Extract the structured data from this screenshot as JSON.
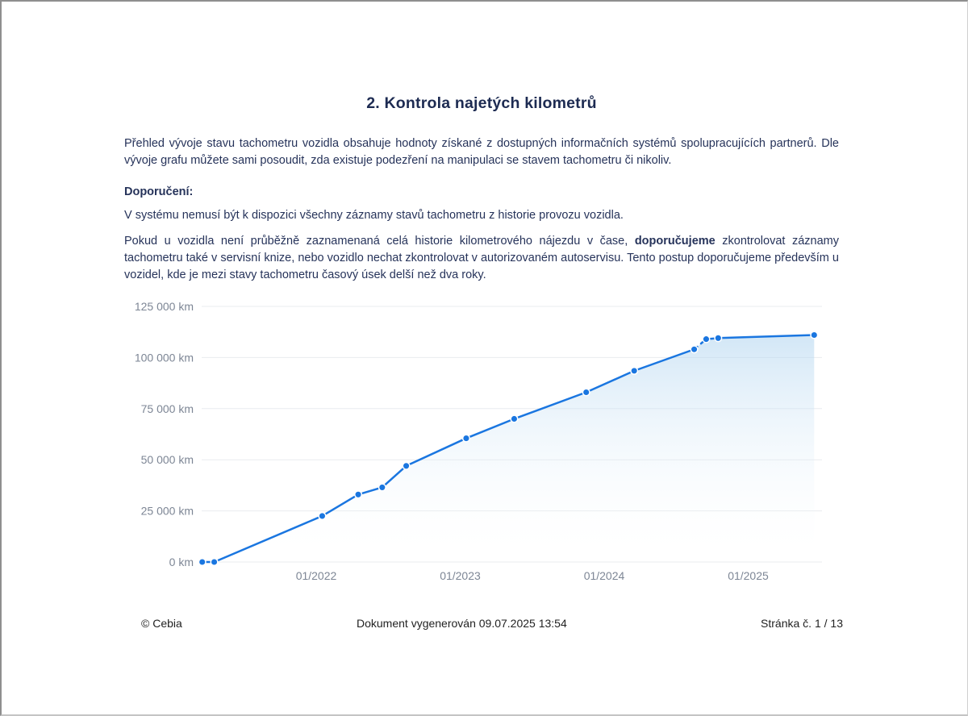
{
  "page": {
    "title": "2. Kontrola najetých kilometrů",
    "paragraph1": "Přehled vývoje stavu tachometru vozidla obsahuje hodnoty získané z dostupných informačních systémů spolupracujících partnerů. Dle vývoje grafu můžete sami posoudit, zda existuje podezření na manipulaci se stavem tachometru či nikoliv.",
    "recommendation_label": "Doporučení:",
    "paragraph2": "V systému nemusí být k dispozici všechny záznamy stavů tachometru z historie provozu vozidla.",
    "paragraph3_before": "Pokud u vozidla není průběžně zaznamenaná celá historie kilometrového nájezdu v čase, ",
    "paragraph3_bold": "doporučujeme",
    "paragraph3_after": " zkontrolovat záznamy tachometru také v servisní knize, nebo vozidlo nechat zkontrolovat v autorizovaném autoservisu. Tento postup doporučujeme především u vozidel, kde je mezi stavy tachometru časový úsek delší než dva roky."
  },
  "footer": {
    "copyright": "© Cebia",
    "generated": "Dokument vygenerován 09.07.2025 13:54",
    "page_number": "Stránka č. 1 / 13"
  },
  "colors": {
    "heading_text": "#1d2b52",
    "body_text": "#26335a",
    "footer_text": "#222222"
  },
  "chart_data": {
    "type": "area",
    "title": "",
    "xlabel": "",
    "ylabel": "",
    "ylim": [
      0,
      125000
    ],
    "grid": true,
    "legend": "none",
    "y_ticks_km": [
      125000,
      100000,
      75000,
      50000,
      25000,
      0
    ],
    "y_tick_labels": [
      "125 000 km",
      "100 000 km",
      "75 000 km",
      "50 000 km",
      "25 000 km",
      "0 km"
    ],
    "x_tick_labels": [
      "01/2022",
      "01/2023",
      "01/2024",
      "01/2025"
    ],
    "points": [
      {
        "date": "03/2021",
        "km": 0
      },
      {
        "date": "04/2021",
        "km": 0
      },
      {
        "date": "01/2022",
        "km": 22500
      },
      {
        "date": "04/2022",
        "km": 33000
      },
      {
        "date": "06/2022",
        "km": 36500
      },
      {
        "date": "08/2022",
        "km": 47000
      },
      {
        "date": "01/2023",
        "km": 60500
      },
      {
        "date": "05/2023",
        "km": 70000
      },
      {
        "date": "11/2023",
        "km": 83000
      },
      {
        "date": "03/2024",
        "km": 93500
      },
      {
        "date": "08/2024",
        "km": 104000
      },
      {
        "date": "09/2024",
        "km": 109000,
        "dash_before": true
      },
      {
        "date": "10/2024",
        "km": 109500
      },
      {
        "date": "06/2025",
        "km": 111000
      }
    ],
    "colors": {
      "line": "#1a76e0",
      "dot": "#1a76e0",
      "dot_ring": "#ffffff",
      "area_top": "#aed3ef",
      "grid": "#e9ecef",
      "axis_label": "#7d8695"
    }
  }
}
